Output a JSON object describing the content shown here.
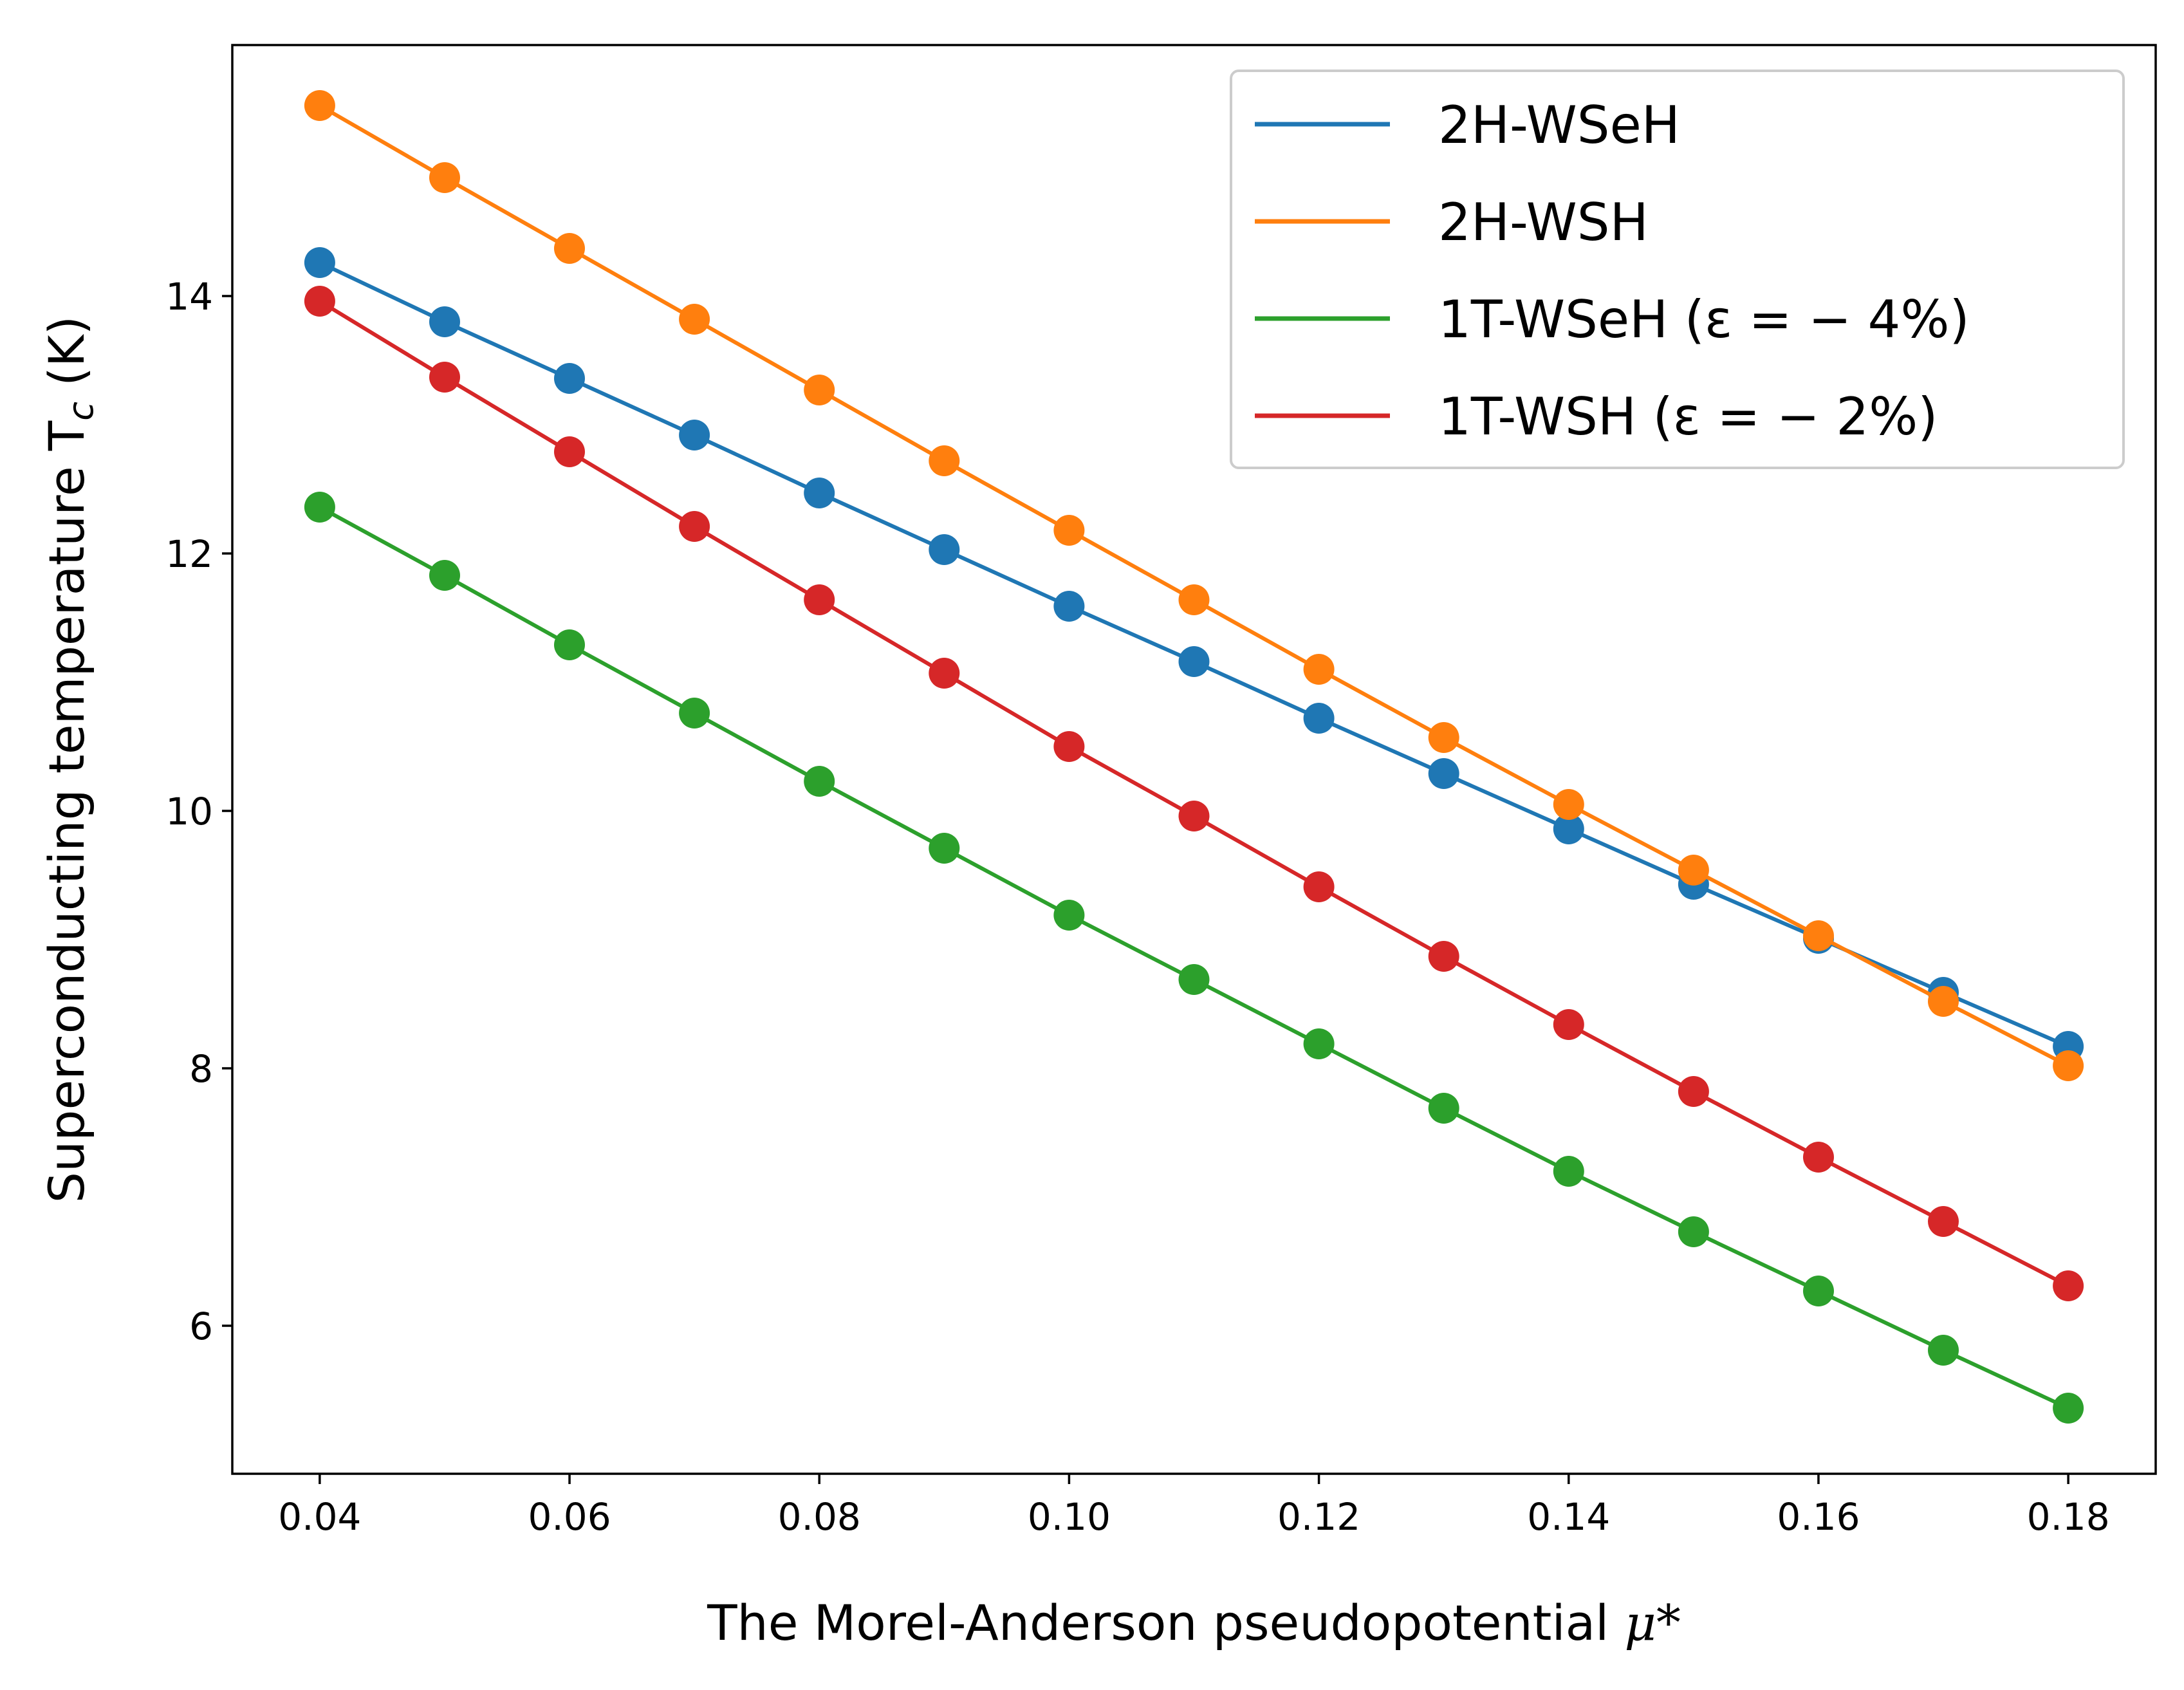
{
  "chart_data": {
    "type": "line",
    "title": "",
    "xlabel": "The Morel-Anderson pseudopotential",
    "xlabel_symbol": "μ*",
    "ylabel": "Superconducting temperature T",
    "ylabel_subscript": "c",
    "ylabel_unit": " (K)",
    "xlim": [
      0.033,
      0.187
    ],
    "ylim": [
      4.85,
      15.95
    ],
    "xticks": [
      0.04,
      0.06,
      0.08,
      0.1,
      0.12,
      0.14,
      0.16,
      0.18
    ],
    "xtick_labels": [
      "0.04",
      "0.06",
      "0.08",
      "0.10",
      "0.12",
      "0.14",
      "0.16",
      "0.18"
    ],
    "yticks": [
      6,
      8,
      10,
      12,
      14
    ],
    "ytick_labels": [
      "6",
      "8",
      "10",
      "12",
      "14"
    ],
    "grid": false,
    "legend_position": "top-right",
    "x": [
      0.04,
      0.05,
      0.06,
      0.07,
      0.08,
      0.09,
      0.1,
      0.11,
      0.12,
      0.13,
      0.14,
      0.15,
      0.16,
      0.17,
      0.18
    ],
    "series": [
      {
        "name": "2H-WSeH",
        "color": "#1f77b4",
        "values": [
          14.26,
          13.8,
          13.36,
          12.92,
          12.47,
          12.03,
          11.59,
          11.16,
          10.72,
          10.29,
          9.86,
          9.43,
          9.01,
          8.59,
          8.17
        ]
      },
      {
        "name": "2H-WSH",
        "color": "#ff7f0e",
        "values": [
          15.48,
          14.92,
          14.37,
          13.82,
          13.27,
          12.72,
          12.18,
          11.64,
          11.1,
          10.57,
          10.05,
          9.54,
          9.03,
          8.52,
          8.02
        ]
      },
      {
        "name": "1T-WSeH (ε = − 4%)",
        "color": "#2ca02c",
        "values": [
          12.36,
          11.83,
          11.29,
          10.76,
          10.23,
          9.71,
          9.19,
          8.69,
          8.19,
          7.69,
          7.2,
          6.73,
          6.27,
          5.81,
          5.36
        ]
      },
      {
        "name": "1T-WSH (ε = − 2%)",
        "color": "#d62728",
        "values": [
          13.96,
          13.37,
          12.79,
          12.21,
          11.64,
          11.07,
          10.5,
          9.96,
          9.41,
          8.87,
          8.34,
          7.82,
          7.31,
          6.81,
          6.31
        ]
      }
    ]
  }
}
